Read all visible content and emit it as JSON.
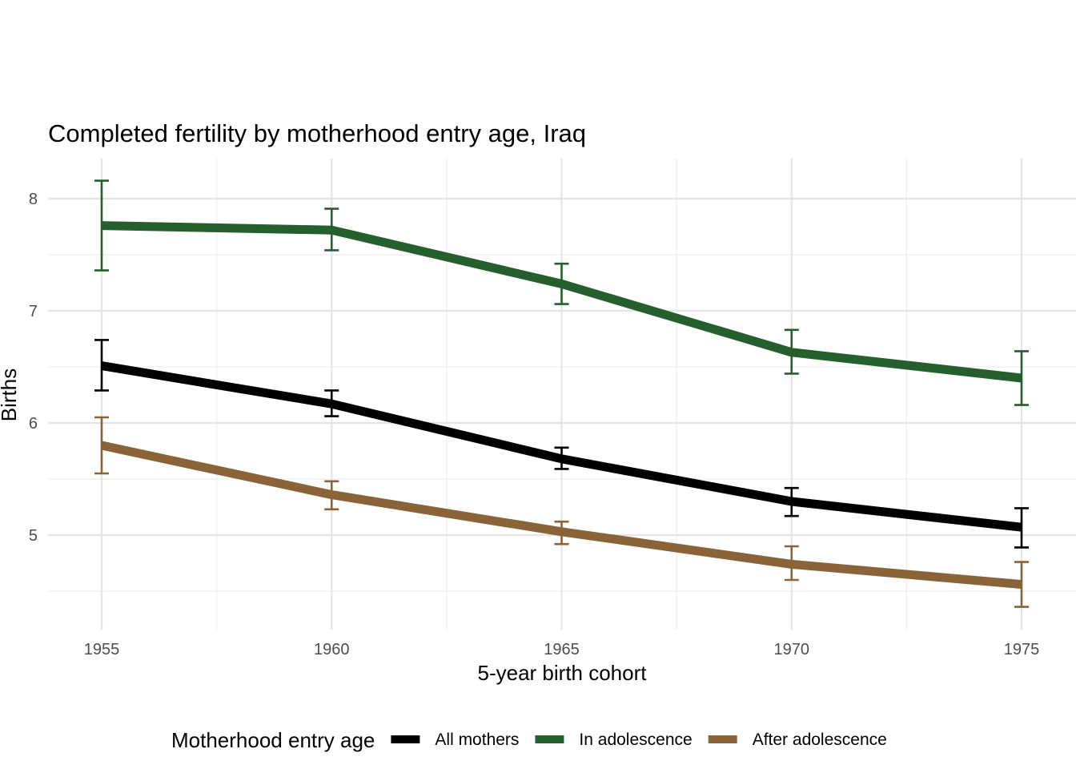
{
  "chart_data": {
    "type": "line",
    "title": "Completed fertility by motherhood entry age,  Iraq",
    "xlabel": "5-year birth cohort",
    "ylabel": "Births",
    "x": [
      1955,
      1960,
      1965,
      1970,
      1975
    ],
    "x_ticks": [
      "1955",
      "1960",
      "1965",
      "1970",
      "1975"
    ],
    "y_ticks": [
      "5",
      "6",
      "7",
      "8"
    ],
    "y_tick_values": [
      5,
      6,
      7,
      8
    ],
    "xlim": [
      1953.85,
      1976.2
    ],
    "ylim": [
      4.17,
      8.36
    ],
    "grid": true,
    "legend": {
      "title": "Motherhood entry age",
      "position": "bottom"
    },
    "series": [
      {
        "name": "All mothers",
        "color": "#000000",
        "values": [
          6.51,
          6.17,
          5.68,
          5.3,
          5.07
        ],
        "ci_low": [
          6.29,
          6.06,
          5.59,
          5.17,
          4.89
        ],
        "ci_high": [
          6.74,
          6.29,
          5.78,
          5.42,
          5.24
        ]
      },
      {
        "name": "In adolescence",
        "color": "#245f2d",
        "values": [
          7.76,
          7.72,
          7.24,
          6.63,
          6.4
        ],
        "ci_low": [
          7.36,
          7.54,
          7.06,
          6.44,
          6.16
        ],
        "ci_high": [
          8.16,
          7.91,
          7.42,
          6.83,
          6.64
        ]
      },
      {
        "name": "After adolescence",
        "color": "#8b6339",
        "values": [
          5.8,
          5.36,
          5.03,
          4.74,
          4.56
        ],
        "ci_low": [
          5.55,
          5.23,
          4.92,
          4.6,
          4.36
        ],
        "ci_high": [
          6.05,
          5.48,
          5.12,
          4.9,
          4.76
        ]
      }
    ]
  }
}
